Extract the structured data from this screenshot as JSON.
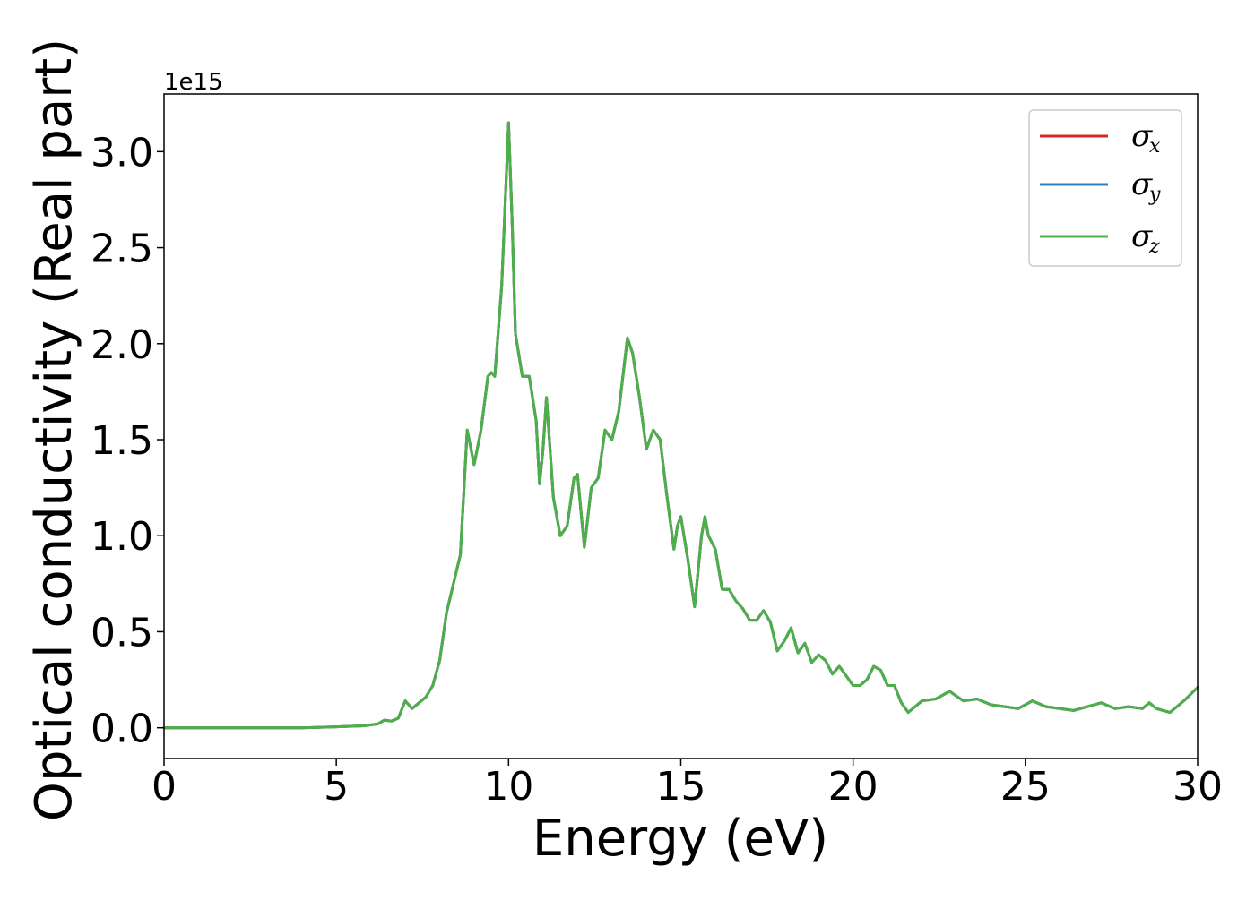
{
  "chart_data": {
    "type": "line",
    "xlabel": "Energy (eV)",
    "ylabel": "Optical conductivity (Real part)",
    "y_offset_label": "1e15",
    "y_scale": 1000000000000000.0,
    "xlim": [
      0,
      30
    ],
    "ylim": [
      -0.16,
      3.3
    ],
    "xticks": [
      0,
      5,
      10,
      15,
      20,
      25,
      30
    ],
    "xtick_labels": [
      "0",
      "5",
      "10",
      "15",
      "20",
      "25",
      "30"
    ],
    "yticks": [
      0.0,
      0.5,
      1.0,
      1.5,
      2.0,
      2.5,
      3.0
    ],
    "ytick_labels": [
      "0.0",
      "0.5",
      "1.0",
      "1.5",
      "2.0",
      "2.5",
      "3.0"
    ],
    "grid": false,
    "legend_position": "top-right",
    "series": [
      {
        "name": "σ_x",
        "legend_symbol": "σ",
        "legend_subscript": "x",
        "color": "#d62728",
        "x": [
          0,
          2,
          4,
          5,
          5.8,
          6.2,
          6.4,
          6.6,
          6.8,
          7.0,
          7.2,
          7.4,
          7.6,
          7.8,
          8.0,
          8.2,
          8.4,
          8.6,
          8.8,
          9.0,
          9.2,
          9.4,
          9.5,
          9.6,
          9.8,
          10.0,
          10.1,
          10.2,
          10.4,
          10.6,
          10.8,
          10.9,
          11.0,
          11.1,
          11.3,
          11.5,
          11.7,
          11.9,
          12.0,
          12.2,
          12.4,
          12.6,
          12.8,
          13.0,
          13.2,
          13.45,
          13.6,
          13.8,
          14.0,
          14.2,
          14.4,
          14.6,
          14.8,
          14.9,
          15.0,
          15.2,
          15.4,
          15.6,
          15.7,
          15.8,
          16.0,
          16.2,
          16.4,
          16.6,
          16.8,
          17.0,
          17.2,
          17.4,
          17.6,
          17.8,
          18.0,
          18.2,
          18.4,
          18.6,
          18.8,
          19.0,
          19.2,
          19.4,
          19.6,
          19.8,
          20.0,
          20.2,
          20.4,
          20.6,
          20.8,
          21.0,
          21.2,
          21.4,
          21.6,
          21.8,
          22.0,
          22.4,
          22.8,
          23.2,
          23.6,
          24.0,
          24.4,
          24.8,
          25.2,
          25.6,
          26.0,
          26.4,
          26.8,
          27.2,
          27.6,
          28.0,
          28.4,
          28.6,
          28.8,
          29.0,
          29.2,
          29.6,
          30.0
        ],
        "y": [
          0.0,
          0.0,
          0.0,
          0.005,
          0.01,
          0.02,
          0.04,
          0.035,
          0.05,
          0.14,
          0.1,
          0.13,
          0.16,
          0.22,
          0.35,
          0.6,
          0.75,
          0.9,
          1.55,
          1.37,
          1.55,
          1.83,
          1.85,
          1.83,
          2.3,
          3.15,
          2.65,
          2.05,
          1.83,
          1.83,
          1.6,
          1.27,
          1.45,
          1.72,
          1.2,
          1.0,
          1.05,
          1.3,
          1.32,
          0.94,
          1.25,
          1.3,
          1.55,
          1.5,
          1.65,
          2.03,
          1.95,
          1.72,
          1.45,
          1.55,
          1.5,
          1.2,
          0.93,
          1.05,
          1.1,
          0.88,
          0.63,
          1.0,
          1.1,
          1.0,
          0.93,
          0.72,
          0.72,
          0.66,
          0.62,
          0.56,
          0.56,
          0.61,
          0.55,
          0.4,
          0.45,
          0.52,
          0.39,
          0.44,
          0.34,
          0.38,
          0.35,
          0.28,
          0.32,
          0.27,
          0.22,
          0.22,
          0.25,
          0.32,
          0.3,
          0.22,
          0.22,
          0.13,
          0.08,
          0.11,
          0.14,
          0.15,
          0.19,
          0.14,
          0.15,
          0.12,
          0.11,
          0.1,
          0.14,
          0.11,
          0.1,
          0.09,
          0.11,
          0.13,
          0.1,
          0.11,
          0.1,
          0.13,
          0.1,
          0.09,
          0.08,
          0.14,
          0.21
        ]
      },
      {
        "name": "σ_y",
        "legend_symbol": "σ",
        "legend_subscript": "y",
        "color": "#377eb8",
        "x": [
          0,
          2,
          4,
          5,
          5.8,
          6.2,
          6.4,
          6.6,
          6.8,
          7.0,
          7.2,
          7.4,
          7.6,
          7.8,
          8.0,
          8.2,
          8.4,
          8.6,
          8.8,
          9.0,
          9.2,
          9.4,
          9.5,
          9.6,
          9.8,
          10.0,
          10.1,
          10.2,
          10.4,
          10.6,
          10.8,
          10.9,
          11.0,
          11.1,
          11.3,
          11.5,
          11.7,
          11.9,
          12.0,
          12.2,
          12.4,
          12.6,
          12.8,
          13.0,
          13.2,
          13.45,
          13.6,
          13.8,
          14.0,
          14.2,
          14.4,
          14.6,
          14.8,
          14.9,
          15.0,
          15.2,
          15.4,
          15.6,
          15.7,
          15.8,
          16.0,
          16.2,
          16.4,
          16.6,
          16.8,
          17.0,
          17.2,
          17.4,
          17.6,
          17.8,
          18.0,
          18.2,
          18.4,
          18.6,
          18.8,
          19.0,
          19.2,
          19.4,
          19.6,
          19.8,
          20.0,
          20.2,
          20.4,
          20.6,
          20.8,
          21.0,
          21.2,
          21.4,
          21.6,
          21.8,
          22.0,
          22.4,
          22.8,
          23.2,
          23.6,
          24.0,
          24.4,
          24.8,
          25.2,
          25.6,
          26.0,
          26.4,
          26.8,
          27.2,
          27.6,
          28.0,
          28.4,
          28.6,
          28.8,
          29.0,
          29.2,
          29.6,
          30.0
        ],
        "y": [
          0.0,
          0.0,
          0.0,
          0.005,
          0.01,
          0.02,
          0.04,
          0.035,
          0.05,
          0.14,
          0.1,
          0.13,
          0.16,
          0.22,
          0.35,
          0.6,
          0.75,
          0.9,
          1.55,
          1.37,
          1.55,
          1.83,
          1.85,
          1.83,
          2.3,
          3.15,
          2.65,
          2.05,
          1.83,
          1.83,
          1.6,
          1.27,
          1.45,
          1.72,
          1.2,
          1.0,
          1.05,
          1.3,
          1.32,
          0.94,
          1.25,
          1.3,
          1.55,
          1.5,
          1.65,
          2.03,
          1.95,
          1.72,
          1.45,
          1.55,
          1.5,
          1.2,
          0.93,
          1.05,
          1.1,
          0.88,
          0.63,
          1.0,
          1.1,
          1.0,
          0.93,
          0.72,
          0.72,
          0.66,
          0.62,
          0.56,
          0.56,
          0.61,
          0.55,
          0.4,
          0.45,
          0.52,
          0.39,
          0.44,
          0.34,
          0.38,
          0.35,
          0.28,
          0.32,
          0.27,
          0.22,
          0.22,
          0.25,
          0.32,
          0.3,
          0.22,
          0.22,
          0.13,
          0.08,
          0.11,
          0.14,
          0.15,
          0.19,
          0.14,
          0.15,
          0.12,
          0.11,
          0.1,
          0.14,
          0.11,
          0.1,
          0.09,
          0.11,
          0.13,
          0.1,
          0.11,
          0.1,
          0.13,
          0.1,
          0.09,
          0.08,
          0.14,
          0.21
        ]
      },
      {
        "name": "σ_z",
        "legend_symbol": "σ",
        "legend_subscript": "z",
        "color": "#4daf4a",
        "x": [
          0,
          2,
          4,
          5,
          5.8,
          6.2,
          6.4,
          6.6,
          6.8,
          7.0,
          7.2,
          7.4,
          7.6,
          7.8,
          8.0,
          8.2,
          8.4,
          8.6,
          8.8,
          9.0,
          9.2,
          9.4,
          9.5,
          9.6,
          9.8,
          10.0,
          10.1,
          10.2,
          10.4,
          10.6,
          10.8,
          10.9,
          11.0,
          11.1,
          11.3,
          11.5,
          11.7,
          11.9,
          12.0,
          12.2,
          12.4,
          12.6,
          12.8,
          13.0,
          13.2,
          13.45,
          13.6,
          13.8,
          14.0,
          14.2,
          14.4,
          14.6,
          14.8,
          14.9,
          15.0,
          15.2,
          15.4,
          15.6,
          15.7,
          15.8,
          16.0,
          16.2,
          16.4,
          16.6,
          16.8,
          17.0,
          17.2,
          17.4,
          17.6,
          17.8,
          18.0,
          18.2,
          18.4,
          18.6,
          18.8,
          19.0,
          19.2,
          19.4,
          19.6,
          19.8,
          20.0,
          20.2,
          20.4,
          20.6,
          20.8,
          21.0,
          21.2,
          21.4,
          21.6,
          21.8,
          22.0,
          22.4,
          22.8,
          23.2,
          23.6,
          24.0,
          24.4,
          24.8,
          25.2,
          25.6,
          26.0,
          26.4,
          26.8,
          27.2,
          27.6,
          28.0,
          28.4,
          28.6,
          28.8,
          29.0,
          29.2,
          29.6,
          30.0
        ],
        "y": [
          0.0,
          0.0,
          0.0,
          0.005,
          0.01,
          0.02,
          0.04,
          0.035,
          0.05,
          0.14,
          0.1,
          0.13,
          0.16,
          0.22,
          0.35,
          0.6,
          0.75,
          0.9,
          1.55,
          1.37,
          1.55,
          1.83,
          1.85,
          1.83,
          2.3,
          3.15,
          2.65,
          2.05,
          1.83,
          1.83,
          1.6,
          1.27,
          1.45,
          1.72,
          1.2,
          1.0,
          1.05,
          1.3,
          1.32,
          0.94,
          1.25,
          1.3,
          1.55,
          1.5,
          1.65,
          2.03,
          1.95,
          1.72,
          1.45,
          1.55,
          1.5,
          1.2,
          0.93,
          1.05,
          1.1,
          0.88,
          0.63,
          1.0,
          1.1,
          1.0,
          0.93,
          0.72,
          0.72,
          0.66,
          0.62,
          0.56,
          0.56,
          0.61,
          0.55,
          0.4,
          0.45,
          0.52,
          0.39,
          0.44,
          0.34,
          0.38,
          0.35,
          0.28,
          0.32,
          0.27,
          0.22,
          0.22,
          0.25,
          0.32,
          0.3,
          0.22,
          0.22,
          0.13,
          0.08,
          0.11,
          0.14,
          0.15,
          0.19,
          0.14,
          0.15,
          0.12,
          0.11,
          0.1,
          0.14,
          0.11,
          0.1,
          0.09,
          0.11,
          0.13,
          0.1,
          0.11,
          0.1,
          0.13,
          0.1,
          0.09,
          0.08,
          0.14,
          0.21
        ]
      }
    ]
  }
}
